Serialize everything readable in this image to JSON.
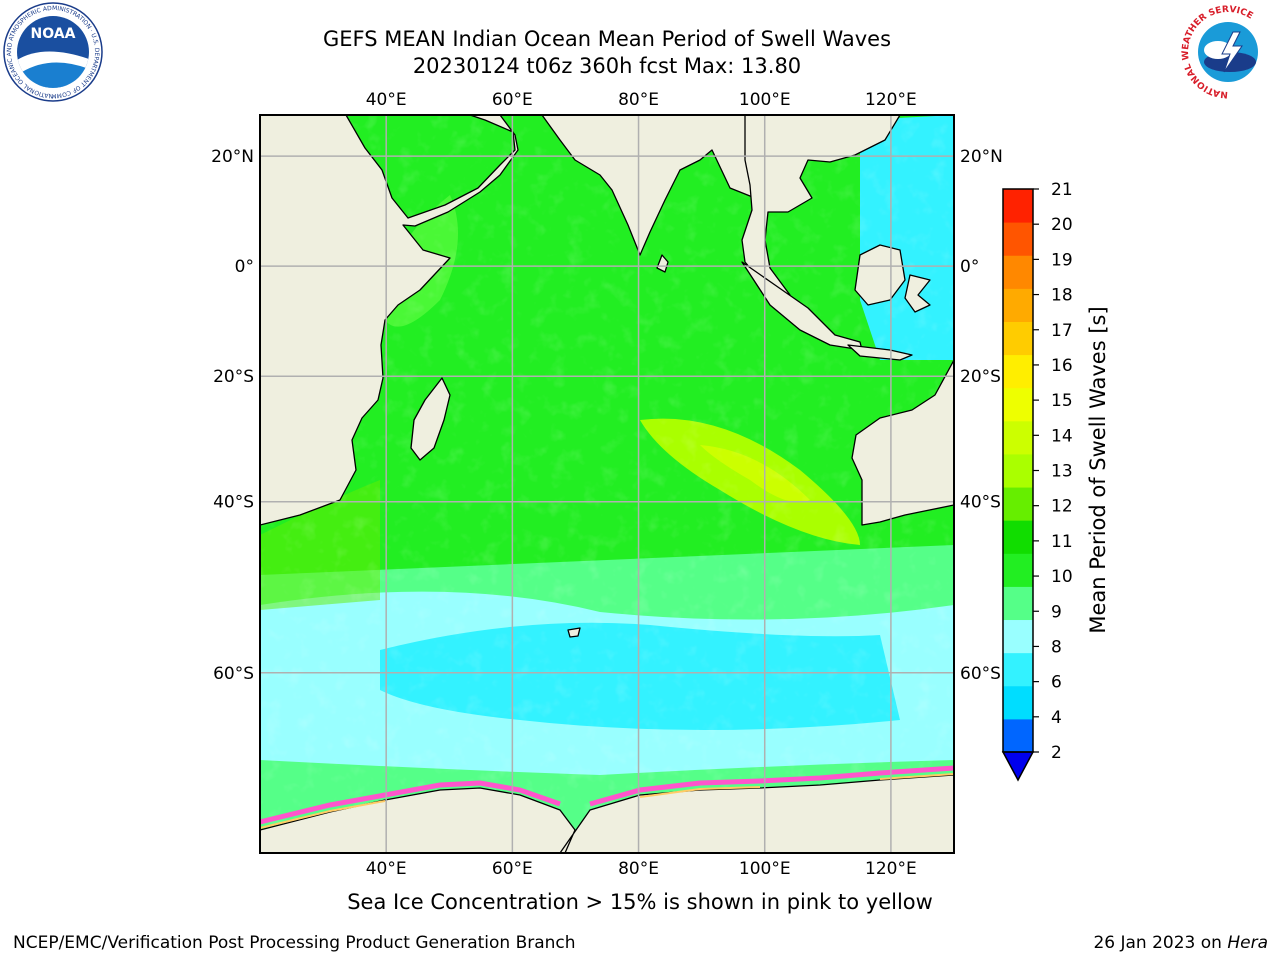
{
  "title": {
    "line1": "GEFS MEAN Indian Ocean Mean Period of Swell Waves",
    "line2": "20230124 t06z 360h fcst   Max: 13.80"
  },
  "subtitle": "Sea Ice Concentration > 15% is shown in pink to yellow",
  "footer": {
    "left": "NCEP/EMC/Verification Post Processing Product Generation Branch",
    "date": "26 Jan 2023 on ",
    "host": "Hera"
  },
  "logos": {
    "noaa_text": "NOAA",
    "noaa_ring": "NATIONAL OCEANIC AND ATMOSPHERIC ADMINISTRATION · U.S. DEPARTMENT OF COMMERCE",
    "nws_ring": "NATIONAL WEATHER SERVICE"
  },
  "map": {
    "lon_labels": [
      "40°E",
      "60°E",
      "80°E",
      "100°E",
      "120°E"
    ],
    "lat_labels": [
      "20°N",
      "0°",
      "20°S",
      "40°S",
      "60°S"
    ],
    "extent": {
      "lon": [
        20,
        130
      ],
      "lat": [
        -73,
        27
      ]
    }
  },
  "colorbar": {
    "label": "Mean Period of Swell Waves [s]",
    "ticks": [
      "2",
      "4",
      "6",
      "8",
      "9",
      "10",
      "11",
      "12",
      "13",
      "14",
      "15",
      "16",
      "17",
      "18",
      "19",
      "20",
      "21"
    ],
    "colors": [
      "#0066ff",
      "#00ddff",
      "#33f2ff",
      "#99ffff",
      "#55ff88",
      "#22ee22",
      "#11dd00",
      "#66ee00",
      "#aaff00",
      "#ccff00",
      "#eeff00",
      "#ffee00",
      "#ffcc00",
      "#ffaa00",
      "#ff8800",
      "#ff5500",
      "#ff2200",
      "#ff0000"
    ],
    "under_color": "#0000ee"
  },
  "colors": {
    "land": "#efefdf",
    "ice": "#ff55cc",
    "grid": "#b0b0b0"
  }
}
